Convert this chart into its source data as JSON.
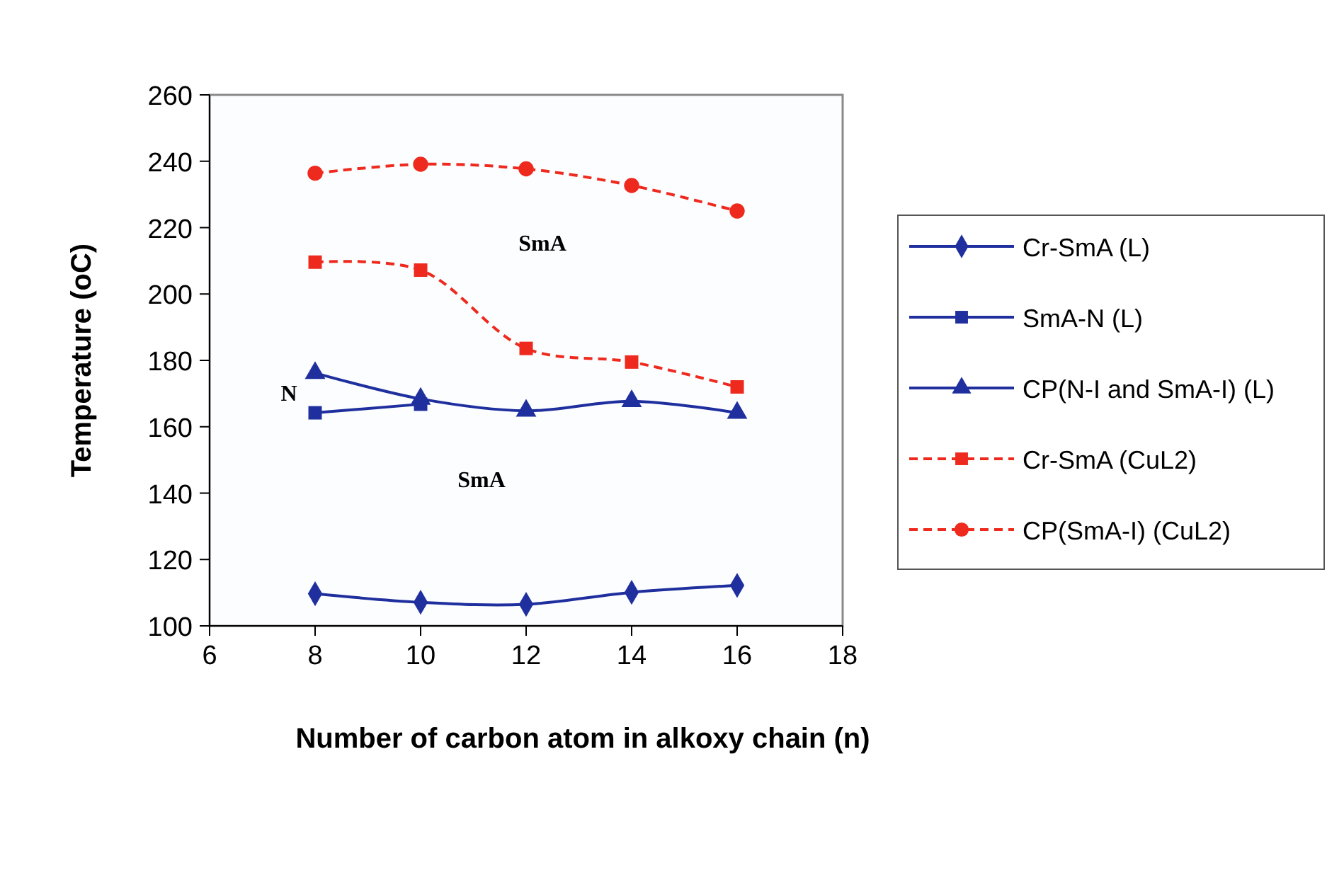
{
  "chart_data": {
    "type": "line",
    "xlabel": "Number of carbon atom in alkoxy chain (n)",
    "ylabel": "Temperature (oC)",
    "x": [
      8,
      10,
      12,
      14,
      16
    ],
    "xlim": [
      6,
      18
    ],
    "xticks": [
      6,
      8,
      10,
      12,
      14,
      16,
      18
    ],
    "ylim": [
      100,
      260
    ],
    "yticks": [
      100,
      120,
      140,
      160,
      180,
      200,
      220,
      240,
      260
    ],
    "grid": false,
    "legend": "right",
    "series": [
      {
        "name": "Cr-SmA (L)",
        "color": "#1f2f9e",
        "marker": "diamond",
        "line_style": "solid",
        "values": [
          109.7,
          107.1,
          106.5,
          110.1,
          112.2
        ]
      },
      {
        "name": "SmA-N (L)",
        "color": "#1f2f9e",
        "marker": "square",
        "line_style": "solid",
        "values": [
          164.2,
          166.8,
          null,
          null,
          null
        ]
      },
      {
        "name": "CP(N-I and SmA-I) (L)",
        "color": "#1f2f9e",
        "marker": "triangle",
        "line_style": "solid",
        "values": [
          176.2,
          168.4,
          164.8,
          167.7,
          164.2
        ]
      },
      {
        "name": "Cr-SmA (CuL2)",
        "color": "#ee2a1e",
        "marker": "square",
        "line_style": "dashed",
        "values": [
          209.6,
          207.2,
          183.6,
          179.5,
          172
        ]
      },
      {
        "name": "CP(SmA-I) (CuL2)",
        "color": "#ee2a1e",
        "marker": "circle",
        "line_style": "dashed",
        "values": [
          236.4,
          239.1,
          237.7,
          232.7,
          225
        ]
      }
    ],
    "annotations": [
      "SmA",
      "N",
      "SmA"
    ]
  }
}
